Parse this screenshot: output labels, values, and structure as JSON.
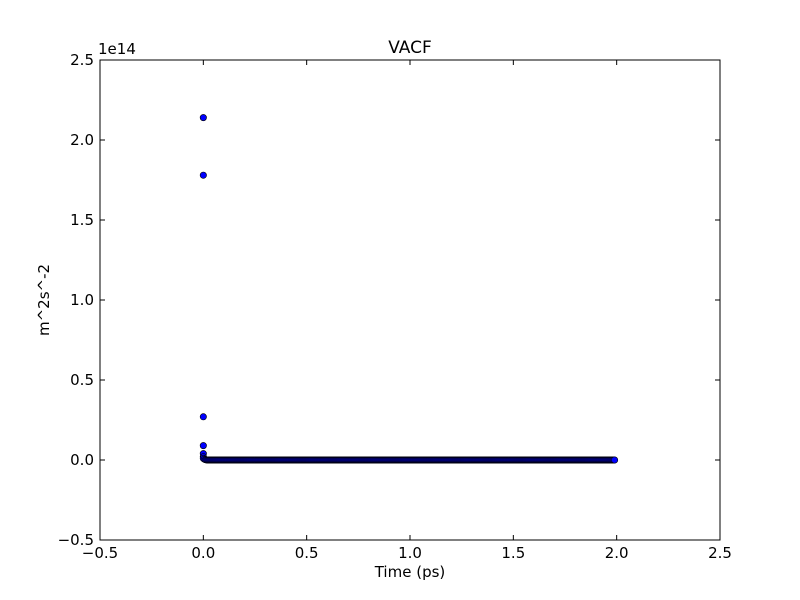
{
  "chart_data": {
    "type": "scatter",
    "title": "VACF",
    "xlabel": "Time (ps)",
    "ylabel": "m^2s^-2",
    "offset_label": "1e14",
    "xlim": [
      -0.5,
      2.5
    ],
    "ylim": [
      -0.5,
      2.5
    ],
    "xticks": [
      -0.5,
      0.0,
      0.5,
      1.0,
      1.5,
      2.0,
      2.5
    ],
    "xtick_labels": [
      "−0.5",
      "0.0",
      "0.5",
      "1.0",
      "1.5",
      "2.0",
      "2.5"
    ],
    "yticks": [
      -0.5,
      0.0,
      0.5,
      1.0,
      1.5,
      2.0,
      2.5
    ],
    "ytick_labels": [
      "−0.5",
      "0.0",
      "0.5",
      "1.0",
      "1.5",
      "2.0",
      "2.5"
    ],
    "grid": false,
    "marker_color": "#0000ff",
    "marker_edge_color": "#000000",
    "series": [
      {
        "points": [
          [
            0.0,
            2.14
          ],
          [
            0.0,
            1.78
          ],
          [
            0.0,
            0.27
          ],
          [
            0.0,
            0.09
          ],
          [
            0.0,
            0.04
          ],
          [
            0.0,
            0.02
          ],
          [
            0.0,
            0.01
          ],
          [
            0.005,
            0.005
          ],
          [
            0.01,
            0.002
          ],
          [
            0.015,
            0.001
          ]
        ],
        "tail": {
          "x_start": 0.02,
          "x_end": 1.99,
          "x_step": 0.005,
          "y": 0.0
        }
      }
    ]
  }
}
